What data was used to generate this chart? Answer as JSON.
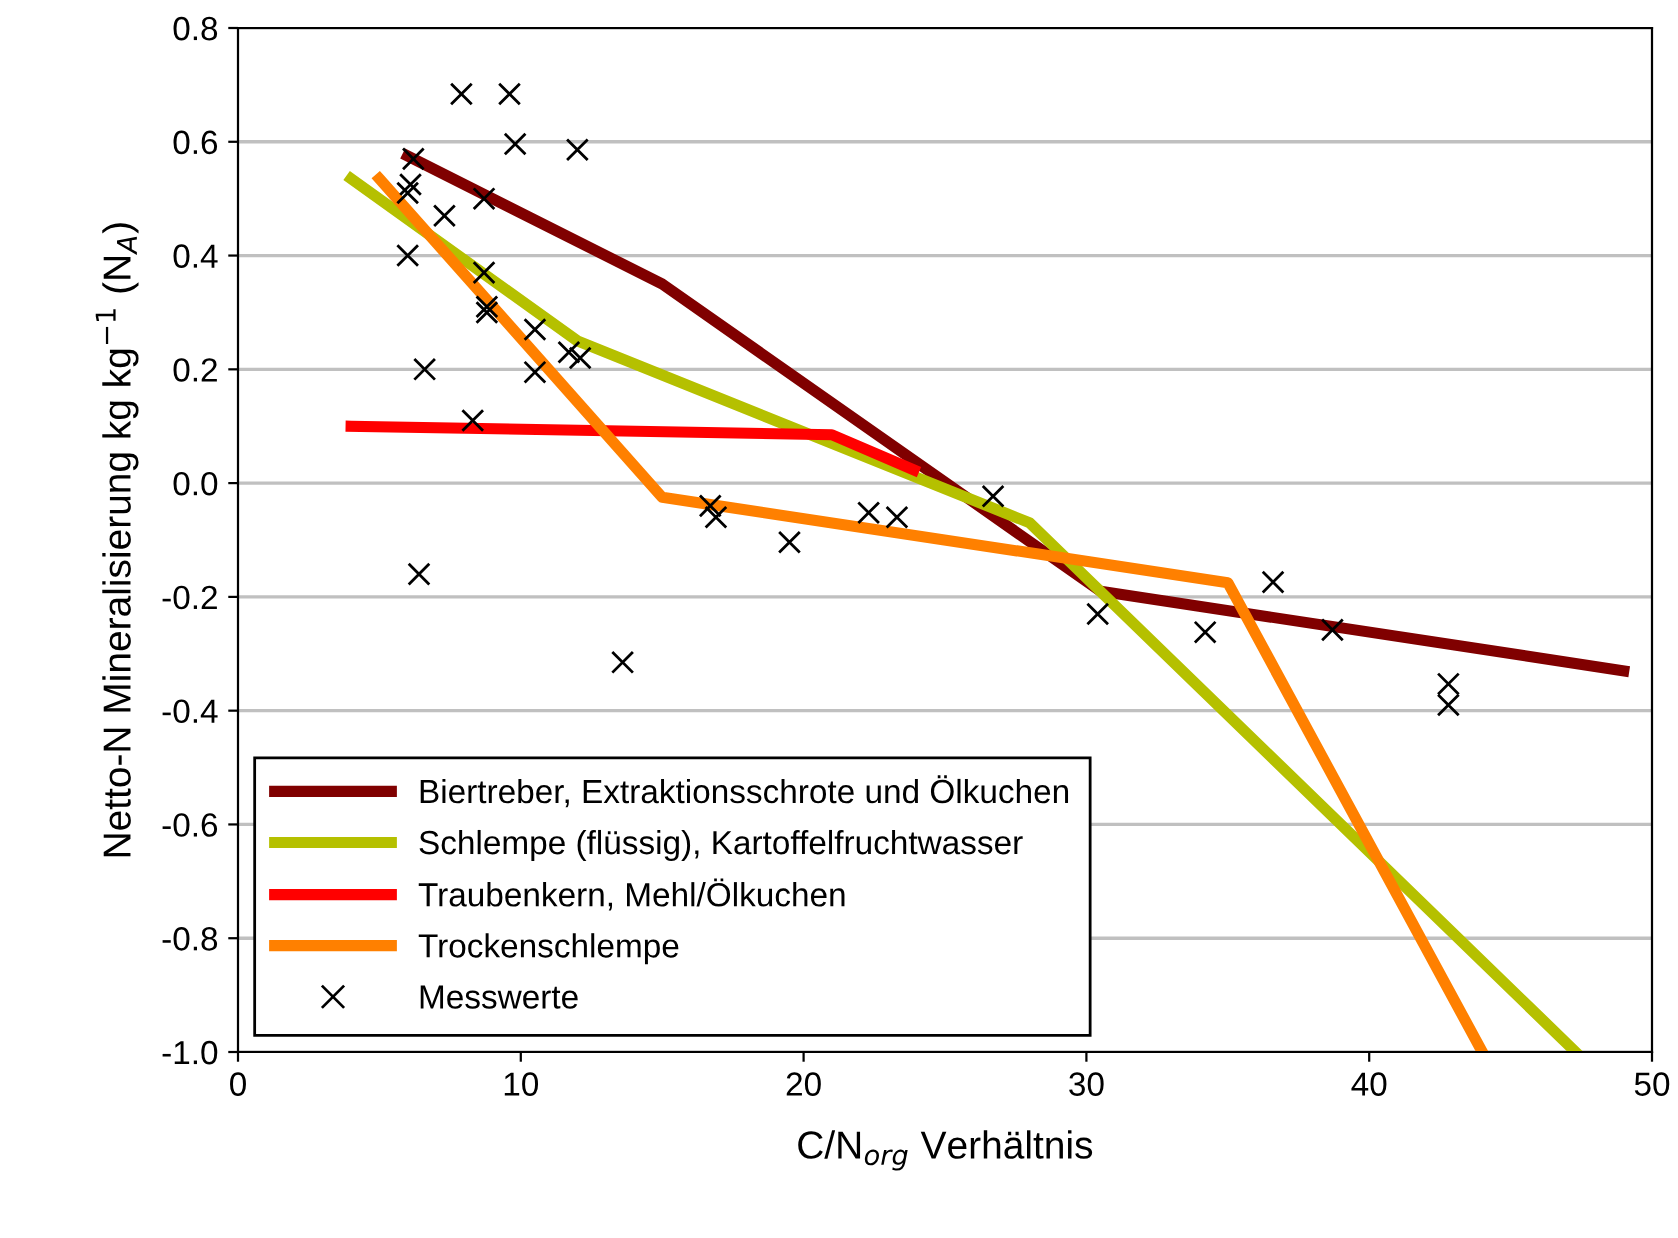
{
  "chart_data": {
    "type": "line",
    "xlabel": "C/N$_{org}$ Verhältnis",
    "ylabel": "Netto-N Mineralisierung kg kg$^{−1}$ (N$_{A}$)",
    "xlim": [
      0,
      50
    ],
    "xticks": [
      0,
      10,
      20,
      30,
      40,
      50
    ],
    "ylim": [
      -1.0,
      0.8
    ],
    "yticks": [
      {
        "value": -1,
        "label": "-1.0"
      },
      -0.8,
      -0.6,
      -0.4,
      -0.2,
      {
        "value": 0,
        "label": "0.0"
      },
      0.2,
      0.4,
      0.6,
      0.8
    ],
    "grid": "y",
    "legend": "bottom left",
    "series": [
      {
        "name": "Biertreber, Extraktionsschrote und Ölkuchen",
        "color": "#800000",
        "x": [
          6,
          15,
          30.5,
          49
        ],
        "values": [
          0.575,
          0.35,
          -0.19,
          -0.33
        ]
      },
      {
        "name": "Schlempe (flüssig), Kartoffelfruchtwasser",
        "color": "#b5c000",
        "x": [
          4,
          12,
          28,
          47.3
        ],
        "values": [
          0.535,
          0.25,
          -0.07,
          -1.0
        ]
      },
      {
        "name": "Traubenkern, Mehl/Ölkuchen",
        "color": "#ff0000",
        "x": [
          4,
          21,
          23.9
        ],
        "values": [
          0.1,
          0.085,
          0.023
        ]
      },
      {
        "name": "Trockenschlempe",
        "color": "#ff8000",
        "x": [
          5,
          15,
          35,
          44
        ],
        "values": [
          0.535,
          -0.025,
          -0.175,
          -1.0
        ]
      },
      {
        "name": "Messwerte",
        "type": "scatter",
        "marker": "cross",
        "color": "#000000",
        "x": [
          7.9,
          9.6,
          9.8,
          12.0,
          6.2,
          6.1,
          6.0,
          8.7,
          7.3,
          6.0,
          8.7,
          8.8,
          8.8,
          10.5,
          11.7,
          12.1,
          10.5,
          6.6,
          8.3,
          6.4,
          13.6,
          16.7,
          16.9,
          19.5,
          22.3,
          23.3,
          26.7,
          30.4,
          34.2,
          36.6,
          38.7,
          42.8,
          42.8
        ],
        "values": [
          0.684,
          0.684,
          0.596,
          0.586,
          0.57,
          0.525,
          0.51,
          0.5,
          0.47,
          0.4,
          0.37,
          0.31,
          0.3,
          0.27,
          0.23,
          0.22,
          0.195,
          0.2,
          0.11,
          -0.16,
          -0.315,
          -0.04,
          -0.06,
          -0.104,
          -0.052,
          -0.06,
          -0.023,
          -0.23,
          -0.262,
          -0.174,
          -0.258,
          -0.353,
          -0.39
        ]
      }
    ]
  }
}
